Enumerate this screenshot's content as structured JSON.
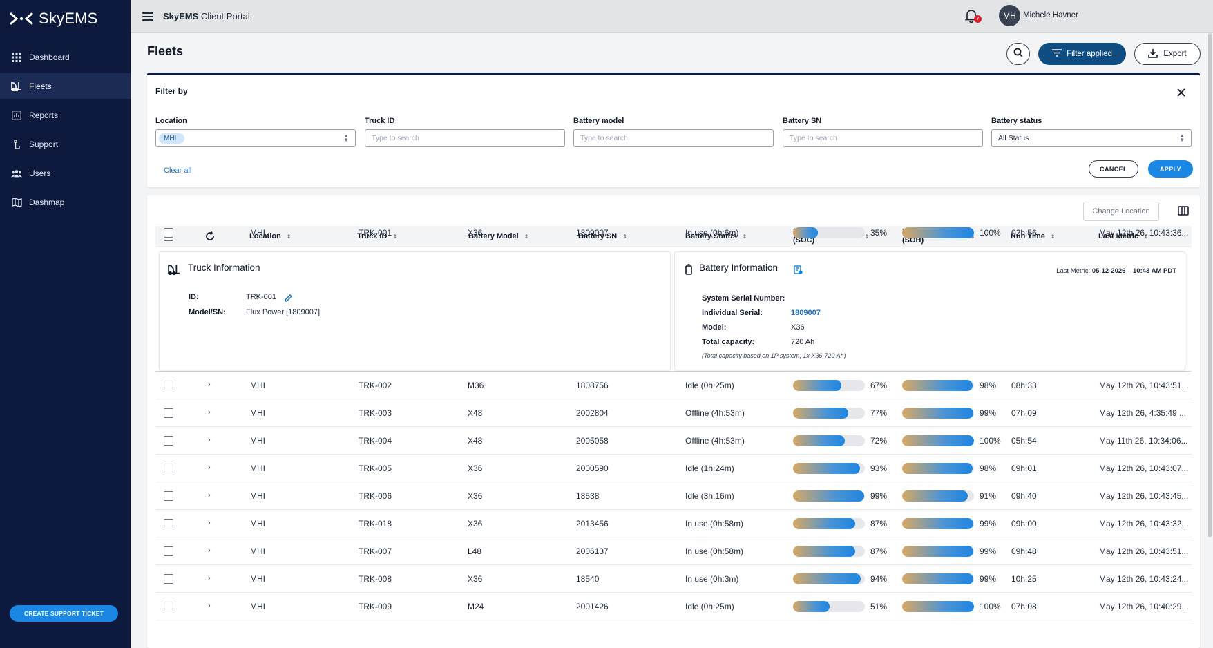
{
  "brand": {
    "name": "SkyEMS"
  },
  "sidebar": {
    "items": [
      {
        "label": "Dashboard",
        "icon": "grid-icon"
      },
      {
        "label": "Fleets",
        "icon": "forklift-icon",
        "active": true
      },
      {
        "label": "Reports",
        "icon": "chart-icon"
      },
      {
        "label": "Support",
        "icon": "support-icon"
      },
      {
        "label": "Users",
        "icon": "users-icon"
      },
      {
        "label": "Dashmap",
        "icon": "map-icon"
      }
    ],
    "support_button": "CREATE SUPPORT TICKET"
  },
  "topbar": {
    "title_bold": "SkyEMS",
    "title_rest": " Client Portal",
    "notifications": "7",
    "user_initials": "MH",
    "user_name": "Michele Havner"
  },
  "page": {
    "title": "Fleets",
    "filter_button": "Filter applied",
    "export_button": "Export"
  },
  "filter": {
    "heading": "Filter by",
    "fields": [
      {
        "label": "Location",
        "value": "MHI"
      },
      {
        "label": "Truck ID",
        "placeholder": "Type to search"
      },
      {
        "label": "Battery model",
        "placeholder": "Type to search"
      },
      {
        "label": "Battery SN",
        "placeholder": "Type to search"
      },
      {
        "label": "Battery status",
        "value": "All Status"
      }
    ],
    "clear_all": "Clear all",
    "cancel": "CANCEL",
    "apply": "APPLY"
  },
  "table": {
    "change_location": "Change Location",
    "columns": [
      "Location",
      "Truck ID",
      "Battery Model",
      "Battery SN",
      "Battery Status",
      "State of Charge\n(SOC)",
      "State of Health\n(SOH)",
      "Run Time",
      "Last Metric"
    ],
    "rows": [
      {
        "location": "MHI",
        "truck": "TRK-001",
        "model": "X36",
        "sn": "1809007",
        "status": "In use (0h:6m)",
        "soc": 35,
        "soc_label": "35%",
        "soh": 100,
        "soh_label": "100%",
        "run": "02h:56",
        "last": "May 12th 26, 10:43:36...",
        "expanded": true
      },
      {
        "location": "MHI",
        "truck": "TRK-002",
        "model": "M36",
        "sn": "1808756",
        "status": "Idle (0h:25m)",
        "soc": 67,
        "soc_label": "67%",
        "soh": 98,
        "soh_label": "98%",
        "run": "08h:33",
        "last": "May 12th 26, 10:43:51..."
      },
      {
        "location": "MHI",
        "truck": "TRK-003",
        "model": "X48",
        "sn": "2002804",
        "status": "Offline (4h:53m)",
        "soc": 77,
        "soc_label": "77%",
        "soh": 99,
        "soh_label": "99%",
        "run": "07h:09",
        "last": "May 12th 26, 4:35:49 ..."
      },
      {
        "location": "MHI",
        "truck": "TRK-004",
        "model": "X48",
        "sn": "2005058",
        "status": "Offline (4h:53m)",
        "soc": 72,
        "soc_label": "72%",
        "soh": 100,
        "soh_label": "100%",
        "run": "05h:54",
        "last": "May 11th 26, 10:34:06..."
      },
      {
        "location": "MHI",
        "truck": "TRK-005",
        "model": "X36",
        "sn": "2000590",
        "status": "Idle (1h:24m)",
        "soc": 93,
        "soc_label": "93%",
        "soh": 98,
        "soh_label": "98%",
        "run": "09h:01",
        "last": "May 12th 26, 10:43:07..."
      },
      {
        "location": "MHI",
        "truck": "TRK-006",
        "model": "X36",
        "sn": "18538",
        "status": "Idle (3h:16m)",
        "soc": 99,
        "soc_label": "99%",
        "soh": 91,
        "soh_label": "91%",
        "run": "09h:40",
        "last": "May 12th 26, 10:43:45..."
      },
      {
        "location": "MHI",
        "truck": "TRK-018",
        "model": "X36",
        "sn": "2013456",
        "status": "In use (0h:58m)",
        "soc": 87,
        "soc_label": "87%",
        "soh": 99,
        "soh_label": "99%",
        "run": "09h:00",
        "last": "May 12th 26, 10:43:32..."
      },
      {
        "location": "MHI",
        "truck": "TRK-007",
        "model": "L48",
        "sn": "2006137",
        "status": "In use (0h:58m)",
        "soc": 87,
        "soc_label": "87%",
        "soh": 99,
        "soh_label": "99%",
        "run": "09h:48",
        "last": "May 12th 26, 10:43:51..."
      },
      {
        "location": "MHI",
        "truck": "TRK-008",
        "model": "X36",
        "sn": "18540",
        "status": "In use (0h:3m)",
        "soc": 94,
        "soc_label": "94%",
        "soh": 99,
        "soh_label": "99%",
        "run": "10h:25",
        "last": "May 12th 26, 10:43:24..."
      },
      {
        "location": "MHI",
        "truck": "TRK-009",
        "model": "M24",
        "sn": "2001426",
        "status": "Idle (0h:25m)",
        "soc": 51,
        "soc_label": "51%",
        "soh": 100,
        "soh_label": "100%",
        "run": "07h:08",
        "last": "May 12th 26, 10:40:29..."
      }
    ]
  },
  "truck_info": {
    "title": "Truck Information",
    "id_label": "ID:",
    "id_value": "TRK-001",
    "model_label": "Model/SN:",
    "model_value": "Flux Power [1809007]"
  },
  "battery_info": {
    "title": "Battery Information",
    "last_metric_label": "Last Metric:",
    "last_metric_value": "05-12-2026 – 10:43 AM PDT",
    "system_serial_label": "System Serial Number:",
    "individual_serial_label": "Individual Serial:",
    "individual_serial_value": "1809007",
    "model_label": "Model:",
    "model_value": "X36",
    "capacity_label": "Total capacity:",
    "capacity_value": "720 Ah",
    "note": "(Total capacity based on 1P system, 1x X36-720 Ah)"
  }
}
